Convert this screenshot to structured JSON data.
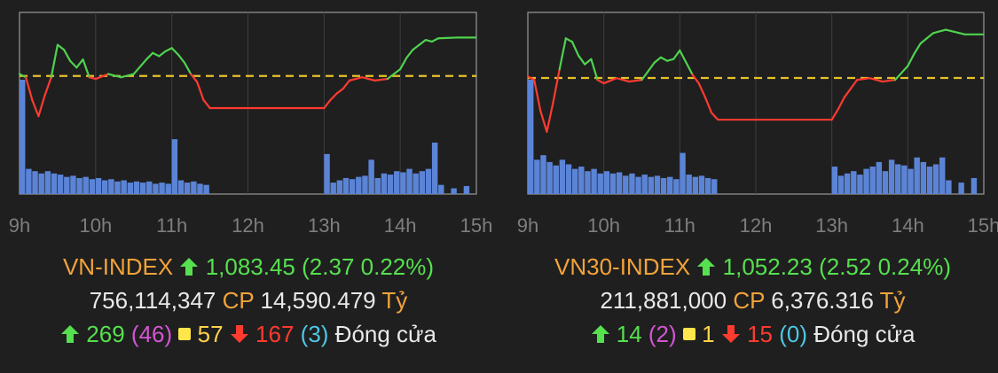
{
  "panels": [
    {
      "index_name": "VN-INDEX",
      "value": "1,083.45",
      "change": "(2.37",
      "change_pct": "0.22%)",
      "volume": "756,114,347",
      "cp_label": "CP",
      "value_traded": "14,590.479",
      "unit": "Tỷ",
      "advances": "269",
      "ceiling": "(46)",
      "unchanged": "57",
      "declines": "167",
      "floor": "(3)",
      "status": "Đóng cửa"
    },
    {
      "index_name": "VN30-INDEX",
      "value": "1,052.23",
      "change": "(2.52",
      "change_pct": "0.24%)",
      "volume": "211,881,000",
      "cp_label": "CP",
      "value_traded": "6,376.316",
      "unit": "Tỷ",
      "advances": "14",
      "ceiling": "(2)",
      "unchanged": "1",
      "declines": "15",
      "floor": "(0)",
      "status": "Đóng cửa"
    }
  ],
  "chart_data": [
    {
      "type": "line",
      "title": "VN-INDEX",
      "x_ticks": [
        "9h",
        "10h",
        "11h",
        "12h",
        "13h",
        "14h",
        "15h"
      ],
      "reference": 1081.08,
      "ylim": [
        1073.8,
        1085.0
      ],
      "series": [
        {
          "x": [
            "9:00",
            "9:05",
            "9:10",
            "9:15",
            "9:20",
            "9:25",
            "9:30",
            "9:35",
            "9:40",
            "9:45",
            "9:50",
            "9:55",
            "10:00",
            "10:10",
            "10:20",
            "10:30",
            "10:40",
            "10:45",
            "10:50",
            "10:55",
            "11:00",
            "11:05",
            "11:10",
            "11:15",
            "11:20",
            "11:25",
            "11:30",
            "13:00",
            "13:05",
            "13:10",
            "13:15",
            "13:20",
            "13:30",
            "13:40",
            "13:50",
            "14:00",
            "14:05",
            "14:10",
            "14:15",
            "14:20",
            "14:25",
            "14:30",
            "14:45"
          ],
          "values": [
            1081.2,
            1081.0,
            1079.6,
            1078.6,
            1079.9,
            1081.0,
            1083.0,
            1082.7,
            1082.0,
            1081.6,
            1082.1,
            1081.0,
            1080.9,
            1081.2,
            1081.0,
            1081.2,
            1082.1,
            1082.5,
            1082.3,
            1082.6,
            1082.8,
            1082.4,
            1081.9,
            1081.2,
            1080.7,
            1079.6,
            1079.1,
            1079.1,
            1079.6,
            1080.0,
            1080.3,
            1080.8,
            1081.0,
            1080.8,
            1080.9,
            1081.5,
            1082.2,
            1082.7,
            1083.0,
            1083.3,
            1083.2,
            1083.4,
            1083.45
          ]
        }
      ],
      "volume_bars": [
        {
          "time": "9:00",
          "value": 100
        },
        {
          "time": "9:05",
          "value": 22
        },
        {
          "time": "9:10",
          "value": 20
        },
        {
          "time": "9:15",
          "value": 18
        },
        {
          "time": "9:20",
          "value": 20
        },
        {
          "time": "9:25",
          "value": 18
        },
        {
          "time": "9:30",
          "value": 17
        },
        {
          "time": "9:35",
          "value": 15
        },
        {
          "time": "9:40",
          "value": 16
        },
        {
          "time": "9:45",
          "value": 14
        },
        {
          "time": "9:50",
          "value": 15
        },
        {
          "time": "9:55",
          "value": 13
        },
        {
          "time": "10:00",
          "value": 14
        },
        {
          "time": "10:05",
          "value": 12
        },
        {
          "time": "10:10",
          "value": 13
        },
        {
          "time": "10:15",
          "value": 11
        },
        {
          "time": "10:20",
          "value": 12
        },
        {
          "time": "10:25",
          "value": 10
        },
        {
          "time": "10:30",
          "value": 11
        },
        {
          "time": "10:35",
          "value": 10
        },
        {
          "time": "10:40",
          "value": 11
        },
        {
          "time": "10:45",
          "value": 9
        },
        {
          "time": "10:50",
          "value": 10
        },
        {
          "time": "10:55",
          "value": 9
        },
        {
          "time": "11:00",
          "value": 48
        },
        {
          "time": "11:05",
          "value": 12
        },
        {
          "time": "11:10",
          "value": 10
        },
        {
          "time": "11:15",
          "value": 11
        },
        {
          "time": "11:20",
          "value": 9
        },
        {
          "time": "11:25",
          "value": 8
        },
        {
          "time": "13:00",
          "value": 35
        },
        {
          "time": "13:05",
          "value": 10
        },
        {
          "time": "13:10",
          "value": 12
        },
        {
          "time": "13:15",
          "value": 14
        },
        {
          "time": "13:20",
          "value": 13
        },
        {
          "time": "13:25",
          "value": 15
        },
        {
          "time": "13:30",
          "value": 16
        },
        {
          "time": "13:35",
          "value": 30
        },
        {
          "time": "13:40",
          "value": 14
        },
        {
          "time": "13:45",
          "value": 18
        },
        {
          "time": "13:50",
          "value": 17
        },
        {
          "time": "13:55",
          "value": 20
        },
        {
          "time": "14:00",
          "value": 19
        },
        {
          "time": "14:05",
          "value": 22
        },
        {
          "time": "14:10",
          "value": 18
        },
        {
          "time": "14:15",
          "value": 20
        },
        {
          "time": "14:20",
          "value": 22
        },
        {
          "time": "14:25",
          "value": 45
        },
        {
          "time": "14:30",
          "value": 8
        },
        {
          "time": "14:40",
          "value": 5
        },
        {
          "time": "14:50",
          "value": 7
        }
      ]
    },
    {
      "type": "line",
      "title": "VN30-INDEX",
      "x_ticks": [
        "9h",
        "10h",
        "11h",
        "12h",
        "13h",
        "14h",
        "15h"
      ],
      "reference": 1049.71,
      "ylim": [
        1043.0,
        1053.5
      ],
      "series": [
        {
          "x": [
            "9:00",
            "9:05",
            "9:10",
            "9:15",
            "9:20",
            "9:25",
            "9:30",
            "9:35",
            "9:40",
            "9:45",
            "9:50",
            "9:55",
            "10:00",
            "10:10",
            "10:20",
            "10:30",
            "10:40",
            "10:45",
            "10:50",
            "10:55",
            "11:00",
            "11:05",
            "11:10",
            "11:15",
            "11:20",
            "11:25",
            "11:30",
            "13:00",
            "13:05",
            "13:10",
            "13:15",
            "13:20",
            "13:30",
            "13:40",
            "13:50",
            "14:00",
            "14:05",
            "14:10",
            "14:15",
            "14:20",
            "14:25",
            "14:30",
            "14:45"
          ],
          "values": [
            1049.8,
            1049.6,
            1047.8,
            1046.6,
            1048.3,
            1050.2,
            1052.0,
            1051.8,
            1051.0,
            1050.5,
            1050.8,
            1049.6,
            1049.4,
            1049.7,
            1049.5,
            1049.6,
            1050.6,
            1050.9,
            1050.7,
            1050.8,
            1051.3,
            1050.6,
            1049.9,
            1049.4,
            1048.6,
            1047.7,
            1047.3,
            1047.3,
            1047.9,
            1048.6,
            1049.1,
            1049.6,
            1049.7,
            1049.5,
            1049.6,
            1050.4,
            1051.1,
            1051.7,
            1052.0,
            1052.3,
            1052.4,
            1052.5,
            1052.23
          ]
        }
      ],
      "volume_bars": [
        {
          "time": "9:00",
          "value": 100
        },
        {
          "time": "9:05",
          "value": 30
        },
        {
          "time": "9:10",
          "value": 34
        },
        {
          "time": "9:15",
          "value": 28
        },
        {
          "time": "9:20",
          "value": 25
        },
        {
          "time": "9:25",
          "value": 30
        },
        {
          "time": "9:30",
          "value": 26
        },
        {
          "time": "9:35",
          "value": 22
        },
        {
          "time": "9:40",
          "value": 24
        },
        {
          "time": "9:45",
          "value": 20
        },
        {
          "time": "9:50",
          "value": 22
        },
        {
          "time": "9:55",
          "value": 18
        },
        {
          "time": "10:00",
          "value": 20
        },
        {
          "time": "10:05",
          "value": 18
        },
        {
          "time": "10:10",
          "value": 19
        },
        {
          "time": "10:15",
          "value": 16
        },
        {
          "time": "10:20",
          "value": 18
        },
        {
          "time": "10:25",
          "value": 15
        },
        {
          "time": "10:30",
          "value": 17
        },
        {
          "time": "10:35",
          "value": 15
        },
        {
          "time": "10:40",
          "value": 16
        },
        {
          "time": "10:45",
          "value": 14
        },
        {
          "time": "10:50",
          "value": 15
        },
        {
          "time": "10:55",
          "value": 13
        },
        {
          "time": "11:00",
          "value": 36
        },
        {
          "time": "11:05",
          "value": 17
        },
        {
          "time": "11:10",
          "value": 15
        },
        {
          "time": "11:15",
          "value": 16
        },
        {
          "time": "11:20",
          "value": 14
        },
        {
          "time": "11:25",
          "value": 13
        },
        {
          "time": "13:00",
          "value": 24
        },
        {
          "time": "13:05",
          "value": 16
        },
        {
          "time": "13:10",
          "value": 18
        },
        {
          "time": "13:15",
          "value": 20
        },
        {
          "time": "13:20",
          "value": 17
        },
        {
          "time": "13:25",
          "value": 22
        },
        {
          "time": "13:30",
          "value": 24
        },
        {
          "time": "13:35",
          "value": 28
        },
        {
          "time": "13:40",
          "value": 20
        },
        {
          "time": "13:45",
          "value": 30
        },
        {
          "time": "13:50",
          "value": 26
        },
        {
          "time": "13:55",
          "value": 25
        },
        {
          "time": "14:00",
          "value": 22
        },
        {
          "time": "14:05",
          "value": 32
        },
        {
          "time": "14:10",
          "value": 28
        },
        {
          "time": "14:15",
          "value": 24
        },
        {
          "time": "14:20",
          "value": 26
        },
        {
          "time": "14:25",
          "value": 32
        },
        {
          "time": "14:30",
          "value": 12
        },
        {
          "time": "14:40",
          "value": 10
        },
        {
          "time": "14:50",
          "value": 14
        }
      ]
    }
  ]
}
